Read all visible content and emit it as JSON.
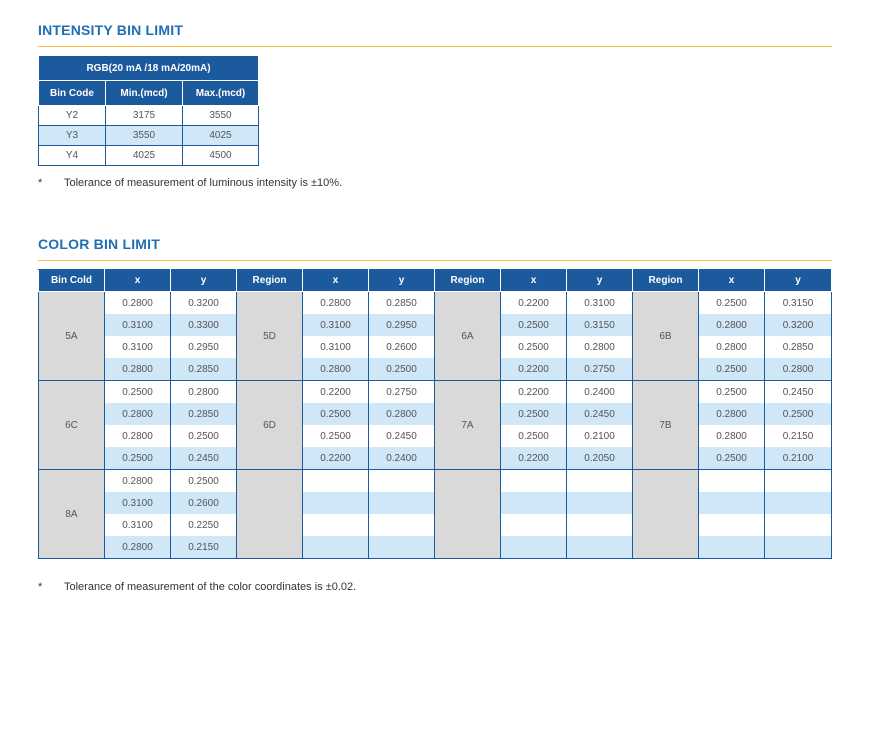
{
  "intensity": {
    "title": "INTENSITY BIN LIMIT",
    "header_group": "RGB(20 mA /18 mA/20mA)",
    "columns": [
      "Bin Code",
      "Min.(mcd)",
      "Max.(mcd)"
    ],
    "rows": [
      [
        "Y2",
        "3175",
        "3550"
      ],
      [
        "Y3",
        "3550",
        "4025"
      ],
      [
        "Y4",
        "4025",
        "4500"
      ]
    ],
    "note_mark": "*",
    "note": "Tolerance of measurement of luminous intensity is ±10%."
  },
  "color": {
    "title": "COLOR BIN LIMIT",
    "columns": [
      "Bin Cold",
      "x",
      "y",
      "Region",
      "x",
      "y",
      "Region",
      "x",
      "y",
      "Region",
      "x",
      "y"
    ],
    "groups": [
      [
        {
          "region": "5A",
          "points": [
            [
              "0.2800",
              "0.3200"
            ],
            [
              "0.3100",
              "0.3300"
            ],
            [
              "0.3100",
              "0.2950"
            ],
            [
              "0.2800",
              "0.2850"
            ]
          ]
        },
        {
          "region": "5D",
          "points": [
            [
              "0.2800",
              "0.2850"
            ],
            [
              "0.3100",
              "0.2950"
            ],
            [
              "0.3100",
              "0.2600"
            ],
            [
              "0.2800",
              "0.2500"
            ]
          ]
        },
        {
          "region": "6A",
          "points": [
            [
              "0.2200",
              "0.3100"
            ],
            [
              "0.2500",
              "0.3150"
            ],
            [
              "0.2500",
              "0.2800"
            ],
            [
              "0.2200",
              "0.2750"
            ]
          ]
        },
        {
          "region": "6B",
          "points": [
            [
              "0.2500",
              "0.3150"
            ],
            [
              "0.2800",
              "0.3200"
            ],
            [
              "0.2800",
              "0.2850"
            ],
            [
              "0.2500",
              "0.2800"
            ]
          ]
        }
      ],
      [
        {
          "region": "6C",
          "points": [
            [
              "0.2500",
              "0.2800"
            ],
            [
              "0.2800",
              "0.2850"
            ],
            [
              "0.2800",
              "0.2500"
            ],
            [
              "0.2500",
              "0.2450"
            ]
          ]
        },
        {
          "region": "6D",
          "points": [
            [
              "0.2200",
              "0.2750"
            ],
            [
              "0.2500",
              "0.2800"
            ],
            [
              "0.2500",
              "0.2450"
            ],
            [
              "0.2200",
              "0.2400"
            ]
          ]
        },
        {
          "region": "7A",
          "points": [
            [
              "0.2200",
              "0.2400"
            ],
            [
              "0.2500",
              "0.2450"
            ],
            [
              "0.2500",
              "0.2100"
            ],
            [
              "0.2200",
              "0.2050"
            ]
          ]
        },
        {
          "region": "7B",
          "points": [
            [
              "0.2500",
              "0.2450"
            ],
            [
              "0.2800",
              "0.2500"
            ],
            [
              "0.2800",
              "0.2150"
            ],
            [
              "0.2500",
              "0.2100"
            ]
          ]
        }
      ],
      [
        {
          "region": "8A",
          "points": [
            [
              "0.2800",
              "0.2500"
            ],
            [
              "0.3100",
              "0.2600"
            ],
            [
              "0.3100",
              "0.2250"
            ],
            [
              "0.2800",
              "0.2150"
            ]
          ]
        },
        {
          "region": "",
          "points": [
            [
              "",
              ""
            ],
            [
              "",
              ""
            ],
            [
              "",
              ""
            ],
            [
              "",
              ""
            ]
          ]
        },
        {
          "region": "",
          "points": [
            [
              "",
              ""
            ],
            [
              "",
              ""
            ],
            [
              "",
              ""
            ],
            [
              "",
              ""
            ]
          ]
        },
        {
          "region": "",
          "points": [
            [
              "",
              ""
            ],
            [
              "",
              ""
            ],
            [
              "",
              ""
            ],
            [
              "",
              ""
            ]
          ]
        }
      ]
    ],
    "note_mark": "*",
    "note": "Tolerance of measurement of the color coordinates is ±0.02."
  },
  "colors": {
    "title_blue": "#1f6fb5",
    "header_blue": "#1c5a9e",
    "rule_yellow": "#f2c33a",
    "row_alt": "#cfe7f7",
    "region_gray": "#d9d9d9"
  }
}
